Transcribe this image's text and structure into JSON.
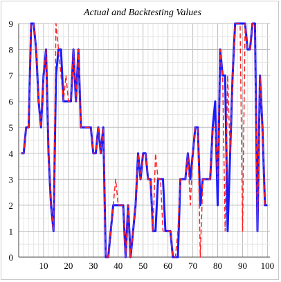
{
  "chart_data": {
    "type": "line",
    "title": "Actual and Backtesting Values",
    "xlabel": "",
    "ylabel": "",
    "xlim": [
      0,
      101
    ],
    "ylim": [
      0,
      9
    ],
    "x_ticks": [
      10,
      20,
      30,
      40,
      50,
      60,
      70,
      80,
      90,
      100
    ],
    "y_ticks": [
      0,
      1,
      2,
      3,
      4,
      5,
      6,
      7,
      8,
      9
    ],
    "grid": true,
    "legend": "none",
    "x": [
      1,
      2,
      3,
      4,
      5,
      6,
      7,
      8,
      9,
      10,
      11,
      12,
      13,
      14,
      15,
      16,
      17,
      18,
      19,
      20,
      21,
      22,
      23,
      24,
      25,
      26,
      27,
      28,
      29,
      30,
      31,
      32,
      33,
      34,
      35,
      36,
      37,
      38,
      39,
      40,
      41,
      42,
      43,
      44,
      45,
      46,
      47,
      48,
      49,
      50,
      51,
      52,
      53,
      54,
      55,
      56,
      57,
      58,
      59,
      60,
      61,
      62,
      63,
      64,
      65,
      66,
      67,
      68,
      69,
      70,
      71,
      72,
      73,
      74,
      75,
      76,
      77,
      78,
      79,
      80,
      81,
      82,
      83,
      84,
      85,
      86,
      87,
      88,
      89,
      90,
      91,
      92,
      93,
      94,
      95,
      96,
      97,
      98,
      99,
      100
    ],
    "series": [
      {
        "color": "#1a1aff",
        "style": "solid",
        "values": [
          4,
          4,
          5,
          5,
          9,
          9,
          8,
          6,
          5,
          7,
          8,
          4,
          2,
          1,
          7,
          8,
          8,
          6,
          6,
          6,
          6,
          8,
          6,
          8,
          5,
          5,
          5,
          5,
          5,
          4,
          4,
          5,
          4,
          5,
          0,
          0,
          1,
          2,
          2,
          2,
          2,
          2,
          0,
          2,
          0,
          1,
          2,
          4,
          3,
          4,
          4,
          3,
          3,
          1,
          1,
          3,
          3,
          3,
          1,
          1,
          1,
          0,
          0,
          0,
          3,
          3,
          3,
          4,
          3,
          4,
          5,
          5,
          2,
          3,
          3,
          3,
          3,
          5,
          6,
          2,
          8,
          7,
          7,
          1,
          4,
          7,
          9,
          9,
          9,
          9,
          9,
          8,
          8,
          9,
          9,
          1,
          7,
          5,
          2,
          2
        ]
      },
      {
        "color": "#ff2020",
        "style": "dashed",
        "values": [
          4,
          4,
          5,
          5,
          9,
          9,
          8,
          6,
          5,
          7,
          8,
          4,
          2,
          1,
          9,
          8,
          7,
          6,
          7,
          6,
          6,
          8,
          6,
          8,
          5,
          5,
          5,
          5,
          5,
          4,
          4,
          5,
          4,
          5,
          0,
          0,
          1,
          2,
          3,
          2,
          2,
          2,
          0,
          2,
          0,
          1,
          2,
          4,
          3,
          4,
          4,
          3,
          3,
          1,
          4,
          3,
          3,
          1,
          1,
          1,
          1,
          0,
          0,
          1,
          3,
          3,
          3,
          4,
          2,
          4,
          5,
          5,
          0,
          3,
          3,
          3,
          3,
          5,
          5,
          3,
          8,
          7,
          1,
          7,
          4,
          7,
          9,
          9,
          9,
          1,
          9,
          8,
          8,
          9,
          9,
          1,
          7,
          5,
          2,
          2
        ]
      }
    ]
  }
}
